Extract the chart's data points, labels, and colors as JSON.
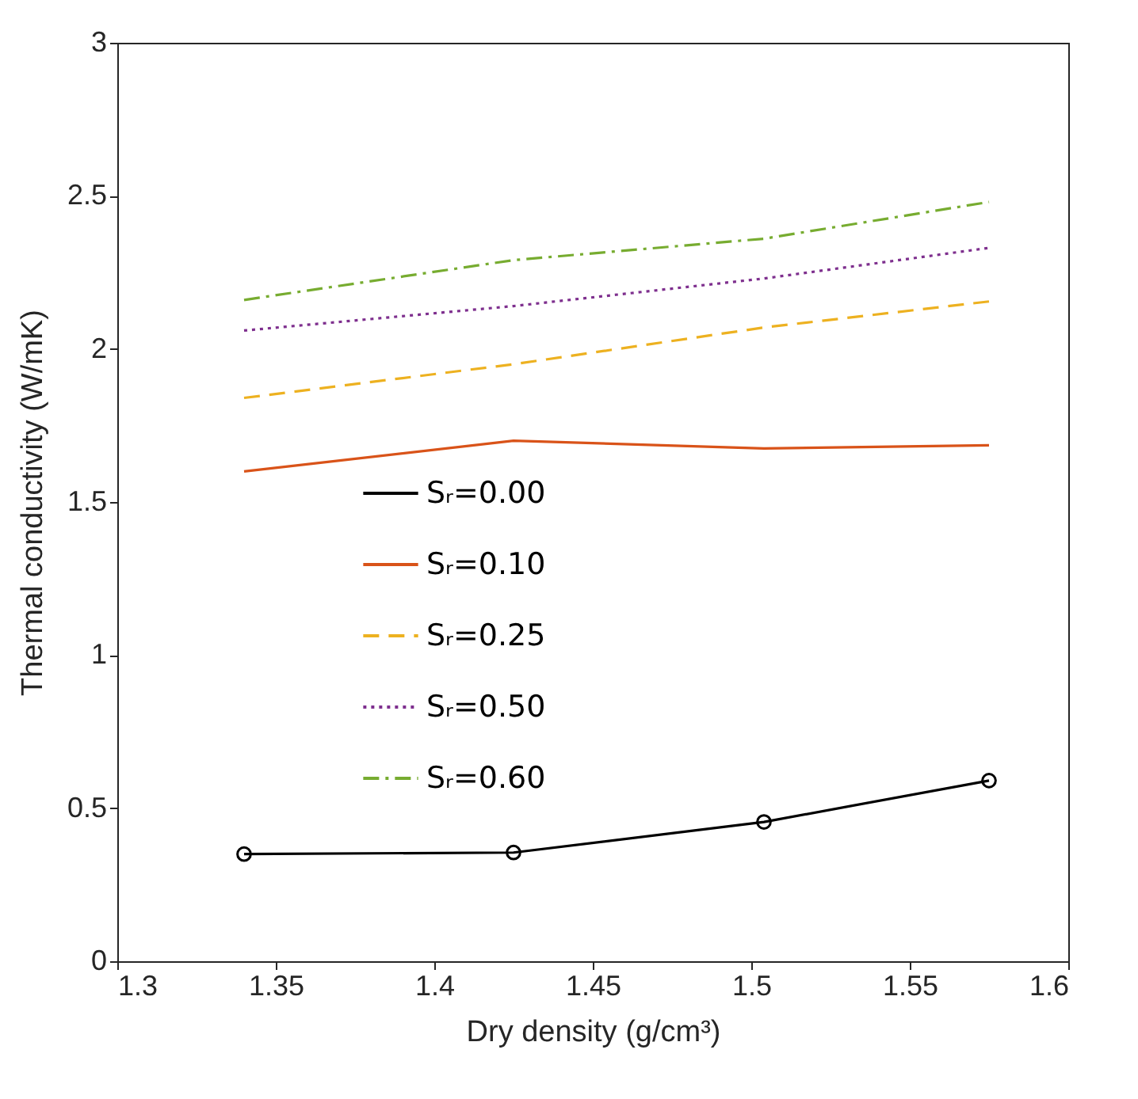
{
  "chart_data": {
    "type": "line",
    "xlabel": "Dry density (g/cm³)",
    "ylabel": "Thermal conductivity (W/mK)",
    "x": [
      1.34,
      1.425,
      1.504,
      1.575
    ],
    "xlim": [
      1.3,
      1.6
    ],
    "xticks": [
      1.3,
      1.35,
      1.4,
      1.45,
      1.5,
      1.55,
      1.6
    ],
    "ylim": [
      0,
      3
    ],
    "yticks": [
      0,
      0.5,
      1,
      1.5,
      2,
      2.5,
      3
    ],
    "grid": false,
    "legend": "left",
    "series": [
      {
        "name": "Sᵣ=0.00",
        "color": "#000000",
        "marker": "circle",
        "line_style": "solid",
        "values": [
          0.35,
          0.355,
          0.455,
          0.59
        ]
      },
      {
        "name": "Sᵣ=0.10",
        "color": "#d95319",
        "marker": "none",
        "line_style": "solid",
        "values": [
          1.6,
          1.7,
          1.675,
          1.685
        ]
      },
      {
        "name": "Sᵣ=0.25",
        "color": "#edb120",
        "marker": "none",
        "line_style": "dashed",
        "values": [
          1.84,
          1.95,
          2.07,
          2.155
        ]
      },
      {
        "name": "Sᵣ=0.50",
        "color": "#7e2f8e",
        "marker": "none",
        "line_style": "dotted",
        "values": [
          2.06,
          2.14,
          2.23,
          2.33
        ]
      },
      {
        "name": "Sᵣ=0.60",
        "color": "#77ac30",
        "marker": "none",
        "line_style": "dashdot",
        "values": [
          2.16,
          2.29,
          2.36,
          2.48
        ]
      }
    ]
  }
}
